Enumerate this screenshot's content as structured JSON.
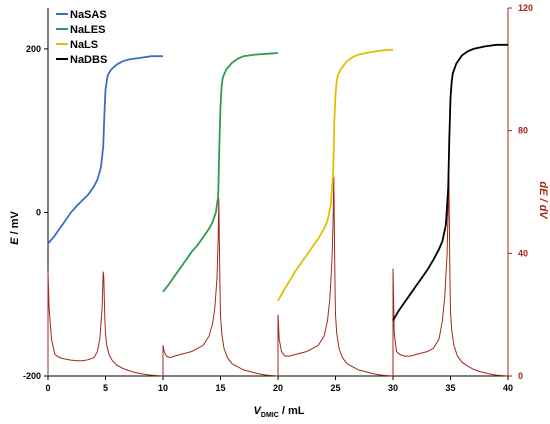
{
  "chart_data": {
    "type": "line",
    "x_axis": {
      "label_main": "V",
      "label_sub": "DMIC",
      "label_unit": " / mL",
      "range": [
        0,
        40
      ],
      "ticks": [
        0,
        5,
        10,
        15,
        20,
        25,
        30,
        35,
        40
      ]
    },
    "y_left": {
      "label_main": "E",
      "label_unit": " / mV",
      "range": [
        -200,
        250
      ],
      "ticks": [
        -200,
        0,
        200
      ]
    },
    "y_right": {
      "label": "dE / dV",
      "range": [
        0,
        120
      ],
      "ticks": [
        0,
        40,
        80,
        120
      ],
      "color": "#a0281a"
    },
    "legend": {
      "placement": "top-left"
    },
    "series": [
      {
        "name": "NaSAS",
        "color": "#3a6fc4",
        "x": [
          0,
          0.5,
          1,
          1.5,
          2,
          2.5,
          3,
          3.5,
          4,
          4.3,
          4.6,
          4.8,
          4.9,
          5.0,
          5.1,
          5.2,
          5.5,
          6,
          6.5,
          7,
          8,
          9,
          10
        ],
        "y": [
          -38,
          -30,
          -20,
          -10,
          0,
          8,
          15,
          22,
          32,
          40,
          55,
          80,
          120,
          150,
          160,
          168,
          175,
          181,
          185,
          187,
          189,
          191,
          191
        ]
      },
      {
        "name": "NaLES",
        "color": "#2e9a52",
        "x": [
          10,
          10.5,
          11,
          11.5,
          12,
          12.5,
          13,
          13.5,
          14,
          14.3,
          14.6,
          14.8,
          14.9,
          15.0,
          15.1,
          15.2,
          15.5,
          16,
          16.5,
          17,
          18,
          19,
          20
        ],
        "y": [
          -97,
          -88,
          -78,
          -68,
          -58,
          -48,
          -40,
          -30,
          -20,
          -12,
          0,
          20,
          80,
          130,
          155,
          165,
          175,
          183,
          188,
          191,
          193,
          194,
          195
        ]
      },
      {
        "name": "NaLS",
        "color": "#e0c000",
        "x": [
          20,
          20.5,
          21,
          21.5,
          22,
          22.5,
          23,
          23.5,
          24,
          24.3,
          24.6,
          24.8,
          24.9,
          25.0,
          25.1,
          25.2,
          25.5,
          26,
          26.5,
          27,
          28,
          29,
          30
        ],
        "y": [
          -108,
          -95,
          -84,
          -72,
          -62,
          -52,
          -42,
          -32,
          -20,
          -10,
          10,
          50,
          110,
          145,
          160,
          168,
          176,
          185,
          190,
          193,
          196,
          198,
          199
        ]
      },
      {
        "name": "NaDBS",
        "color": "#000000",
        "x": [
          30,
          30.5,
          31,
          31.5,
          32,
          32.5,
          33,
          33.5,
          34,
          34.3,
          34.6,
          34.8,
          34.9,
          35.0,
          35.1,
          35.2,
          35.5,
          36,
          36.5,
          37,
          38,
          39,
          40
        ],
        "y": [
          -132,
          -120,
          -110,
          -100,
          -90,
          -80,
          -70,
          -58,
          -45,
          -35,
          -15,
          30,
          90,
          140,
          160,
          170,
          182,
          192,
          197,
          200,
          203,
          205,
          205
        ]
      }
    ],
    "derivative_series": {
      "color": "#a0281a",
      "segments": [
        {
          "x": [
            0,
            0.1,
            0.3,
            0.6,
            1,
            1.5,
            2,
            2.5,
            3,
            3.5,
            4,
            4.3,
            4.5,
            4.7,
            4.8,
            4.85,
            4.9,
            4.95,
            5.0,
            5.1,
            5.3,
            5.6,
            6,
            6.5,
            7,
            7.5,
            8,
            8.5,
            9,
            10
          ],
          "y": [
            34,
            22,
            12,
            7,
            6,
            5.5,
            5.2,
            5,
            5,
            5.3,
            6,
            8,
            12,
            22,
            34,
            32,
            24,
            18,
            14,
            10,
            7,
            5,
            3.5,
            2.5,
            1.8,
            1.2,
            0.8,
            0.5,
            0.3,
            0
          ]
        },
        {
          "x": [
            10,
            10.1,
            10.3,
            10.6,
            11,
            11.5,
            12,
            12.5,
            13,
            13.5,
            14,
            14.3,
            14.5,
            14.7,
            14.8,
            14.85,
            14.9,
            14.95,
            15.0,
            15.1,
            15.3,
            15.6,
            16,
            16.5,
            17,
            17.5,
            18,
            18.5,
            19,
            20
          ],
          "y": [
            10,
            8,
            6.5,
            6,
            6.5,
            7,
            7.5,
            8,
            9,
            10,
            13,
            17,
            22,
            32,
            45,
            58,
            45,
            30,
            20,
            14,
            9,
            6,
            4,
            3,
            2,
            1.5,
            1,
            0.6,
            0.3,
            0
          ]
        },
        {
          "x": [
            20,
            20.1,
            20.3,
            20.6,
            21,
            21.5,
            22,
            22.5,
            23,
            23.5,
            24,
            24.3,
            24.5,
            24.7,
            24.8,
            24.85,
            24.9,
            24.95,
            25.0,
            25.1,
            25.3,
            25.6,
            26,
            26.5,
            27,
            27.5,
            28,
            28.5,
            29,
            30
          ],
          "y": [
            20,
            12,
            8,
            6.5,
            6.5,
            7,
            7.5,
            8,
            9,
            10,
            13,
            18,
            25,
            38,
            52,
            65,
            50,
            32,
            20,
            14,
            9,
            6,
            4,
            3,
            2,
            1.5,
            1,
            0.6,
            0.3,
            0
          ]
        },
        {
          "x": [
            30,
            30.1,
            30.3,
            30.6,
            31,
            31.5,
            32,
            32.5,
            33,
            33.5,
            34,
            34.3,
            34.5,
            34.7,
            34.8,
            34.85,
            34.9,
            34.95,
            35.0,
            35.1,
            35.3,
            35.6,
            36,
            36.5,
            37,
            37.5,
            38,
            38.5,
            39,
            40
          ],
          "y": [
            35,
            14,
            8,
            7,
            6.5,
            6.5,
            7,
            7.5,
            8,
            9,
            12,
            18,
            26,
            40,
            55,
            66,
            52,
            33,
            21,
            15,
            10,
            6.5,
            4.5,
            3.2,
            2.2,
            1.5,
            1,
            0.6,
            0.3,
            0
          ]
        }
      ]
    }
  }
}
